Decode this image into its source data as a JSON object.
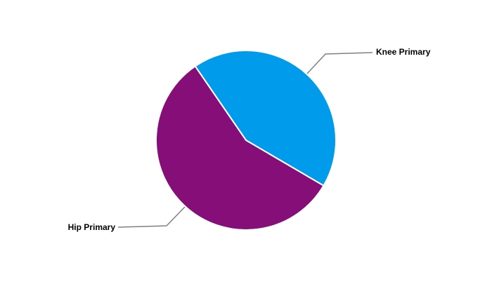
{
  "chart_data": {
    "type": "pie",
    "categories": [
      "Knee Primary",
      "Hip Primary"
    ],
    "values": [
      43,
      57
    ],
    "colors": [
      "#009CEB",
      "#850E78"
    ],
    "title": "",
    "legend": "none",
    "data_labels": "category names with leader lines"
  }
}
